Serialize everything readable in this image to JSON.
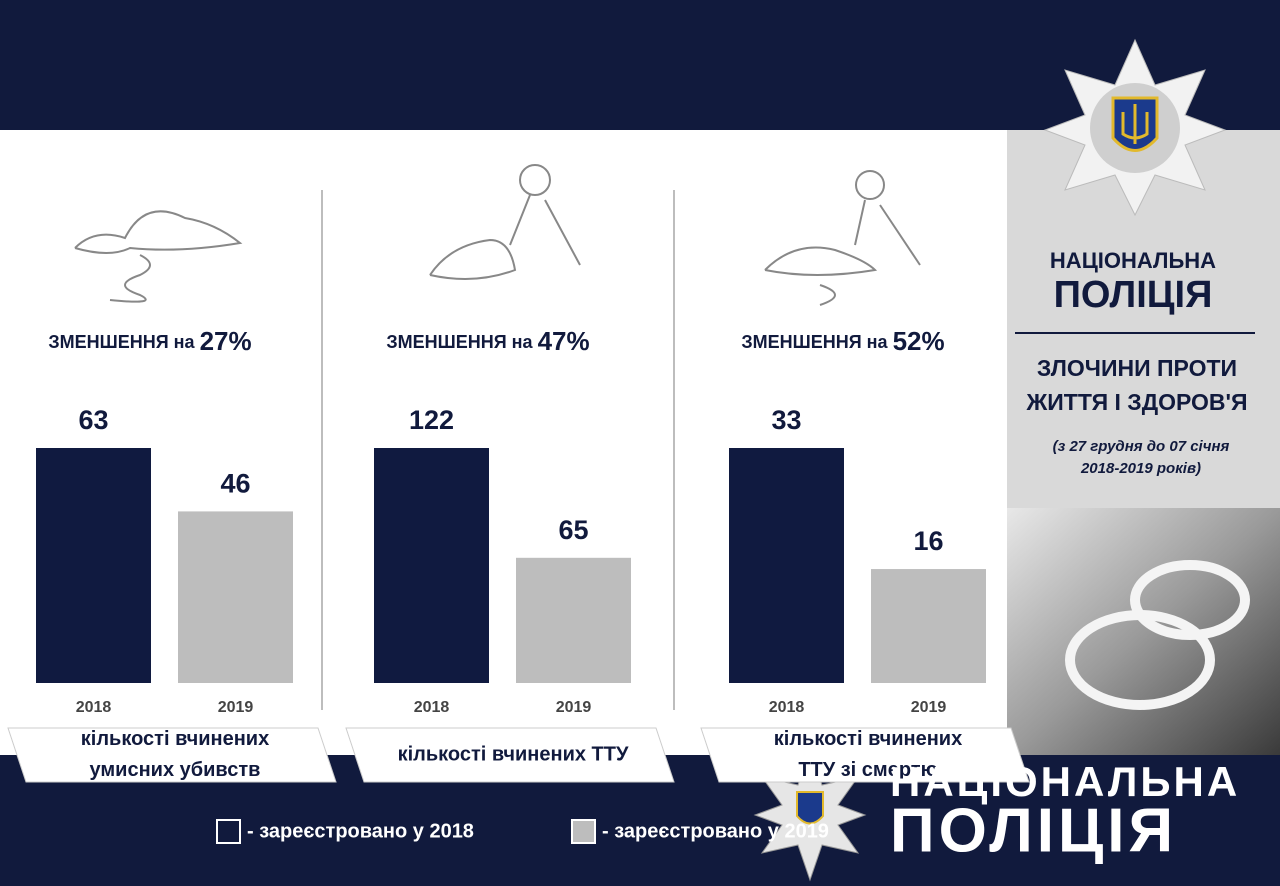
{
  "header": {
    "brand_top": "НАЦІОНАЛЬНА",
    "brand_bottom": "ПОЛІЦІЯ",
    "topic": [
      "ЗЛОЧИНИ ПРОТИ",
      "ЖИТТЯ І ЗДОРОВ'Я"
    ],
    "period": [
      "(з 27 грудня до 07 січня",
      "2018-2019 років)"
    ]
  },
  "chart_data": [
    {
      "type": "bar",
      "title": "ЗМЕНШЕННЯ на",
      "change": "27%",
      "categories": [
        "2018",
        "2019"
      ],
      "values": [
        63,
        46
      ],
      "colors": [
        "#101a40",
        "#bdbdbd"
      ],
      "caption": [
        "кількості вчинених",
        "умисних убивств"
      ]
    },
    {
      "type": "bar",
      "title": "ЗМЕНШЕННЯ на",
      "change": "47%",
      "categories": [
        "2018",
        "2019"
      ],
      "values": [
        122,
        65
      ],
      "colors": [
        "#101a40",
        "#bdbdbd"
      ],
      "caption": [
        "кількості вчинених ТТУ"
      ]
    },
    {
      "type": "bar",
      "title": "ЗМЕНШЕННЯ на",
      "change": "52%",
      "categories": [
        "2018",
        "2019"
      ],
      "values": [
        33,
        16
      ],
      "colors": [
        "#101a40",
        "#bdbdbd"
      ],
      "caption": [
        "кількості вчинених",
        "ТТУ зі смертю"
      ]
    }
  ],
  "legend": [
    {
      "label": "- зареєстровано у 2018",
      "color": "#101a40"
    },
    {
      "label": "- зареєстровано у 2019",
      "color": "#bdbdbd"
    }
  ],
  "footer": {
    "brand_top": "НАЦІОНАЛЬНА",
    "brand_bottom": "ПОЛІЦІЯ"
  }
}
